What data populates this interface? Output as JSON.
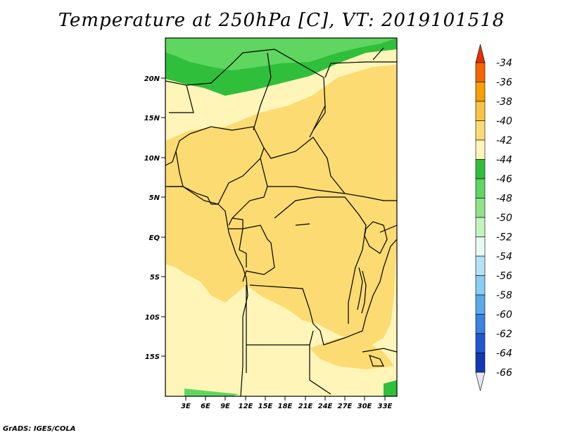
{
  "title": "Temperature at 250hPa [C], VT: 2019101518",
  "footer": "GrADS: IGES/COLA",
  "lat_labels": [
    "20N",
    "15N",
    "10N",
    "5N",
    "EQ",
    "5S",
    "10S",
    "15S"
  ],
  "lon_labels": [
    "3E",
    "6E",
    "9E",
    "12E",
    "15E",
    "18E",
    "21E",
    "24E",
    "27E",
    "30E",
    "33E"
  ],
  "colorbar": {
    "labels": [
      "-34",
      "-36",
      "-38",
      "-40",
      "-42",
      "-44",
      "-46",
      "-48",
      "-50",
      "-52",
      "-54",
      "-56",
      "-58",
      "-60",
      "-62",
      "-64",
      "-66"
    ],
    "colors": [
      "#e83c00",
      "#f66600",
      "#f7a002",
      "#f9c443",
      "#fbdb72",
      "#fff5b8",
      "#2fbf3b",
      "#5ed65f",
      "#8fe38b",
      "#c4f3bd",
      "#e6fbf5",
      "#b3e2f6",
      "#89cdf3",
      "#5aa9eb",
      "#3a82e3",
      "#2059cf",
      "#1139b1",
      "#0b1b85"
    ],
    "top_color": "#e82e00",
    "bottom_color": "#e6e6f8"
  },
  "legend_colors": {
    "cold_band": "#2fbf3b",
    "mid_band": "#5ed65f",
    "warm": "#fbdb72",
    "cool": "#fff5b8"
  }
}
